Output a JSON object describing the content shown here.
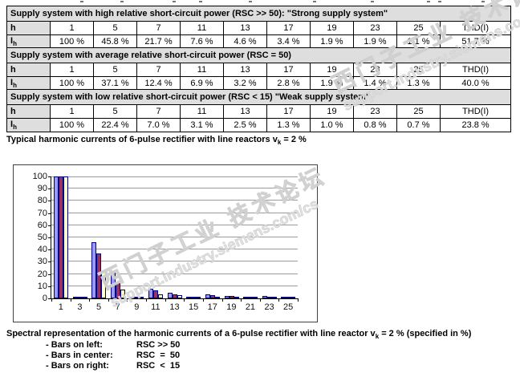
{
  "row_labels": {
    "h": "h",
    "i_base": "I",
    "i_sub": "h"
  },
  "tables": [
    {
      "title": "Supply system with high relative short-circuit power (RSC >> 50): \"Strong supply system\"",
      "columns": [
        "1",
        "5",
        "7",
        "11",
        "13",
        "17",
        "19",
        "23",
        "25",
        "THD(I)"
      ],
      "values": [
        "100 %",
        "45.8 %",
        "21.7 %",
        "7.6 %",
        "4.6 %",
        "3.4 %",
        "1.9 %",
        "1.9 %",
        "1.1 %",
        "51.7 %"
      ]
    },
    {
      "title": "Supply system with average relative short-circuit power (RSC = 50)",
      "columns": [
        "1",
        "5",
        "7",
        "11",
        "13",
        "17",
        "19",
        "23",
        "25",
        "THD(I)"
      ],
      "values": [
        "100 %",
        "37.1 %",
        "12.4 %",
        "6.9 %",
        "3.2 %",
        "2.8 %",
        "1.9 %",
        "1.4 %",
        "1.3 %",
        "40.0 %"
      ]
    },
    {
      "title": "Supply system with low relative short-circuit power (RSC < 15) \"Weak supply system\"",
      "columns": [
        "1",
        "5",
        "7",
        "11",
        "13",
        "17",
        "19",
        "23",
        "25",
        "THD(I)"
      ],
      "values": [
        "100 %",
        "22.4 %",
        "7.0 %",
        "3.1 %",
        "2.5 %",
        "1.3 %",
        "1.0 %",
        "0.8 %",
        "0.7 %",
        "23.8 %"
      ]
    }
  ],
  "caption_top": {
    "prefix": "Typical harmonic currents of 6-pulse rectifier with line reactors v",
    "sub": "k",
    "suffix": " = 2 %"
  },
  "caption_bottom": {
    "prefix": "Spectral representation of the harmonic currents of a 6-pulse rectifier with line reactor v",
    "sub": "k",
    "suffix": " = 2 % (specified in %)"
  },
  "legend_note": [
    {
      "label": "- Bars on left:",
      "value": "RSC >> 50"
    },
    {
      "label": "- Bars in center:",
      "value": "RSC  =  50"
    },
    {
      "label": "- Bars on right:",
      "value": "RSC  <  15"
    }
  ],
  "watermark": {
    "cn": "西门子工业 技术论坛",
    "url": "support.industry.siemens.com/cs"
  },
  "chart_data": {
    "type": "bar",
    "title": "",
    "xlabel": "",
    "ylabel": "",
    "categories": [
      "1",
      "3",
      "5",
      "7",
      "9",
      "11",
      "13",
      "15",
      "17",
      "19",
      "21",
      "23",
      "25"
    ],
    "series": [
      {
        "name": "RSC >> 50",
        "color": "#9999FF",
        "values": [
          100,
          0,
          45.8,
          21.7,
          0,
          7.6,
          4.6,
          0,
          3.4,
          1.9,
          0,
          1.9,
          1.1
        ]
      },
      {
        "name": "RSC = 50",
        "color": "#993366",
        "values": [
          100,
          0,
          37.1,
          12.4,
          0,
          6.9,
          3.2,
          0,
          2.8,
          1.9,
          0,
          1.4,
          1.3
        ]
      },
      {
        "name": "RSC < 15",
        "color": "#FFFFCC",
        "values": [
          100,
          0,
          22.4,
          7.0,
          0,
          3.1,
          2.5,
          0,
          1.3,
          1.0,
          0,
          0.8,
          0.7
        ]
      }
    ],
    "yticks": [
      0,
      10,
      20,
      30,
      40,
      50,
      60,
      70,
      80,
      90,
      100
    ],
    "ylim": [
      0,
      100
    ],
    "grid": true,
    "legend_position": "none",
    "bar_border_color": "#000080"
  }
}
